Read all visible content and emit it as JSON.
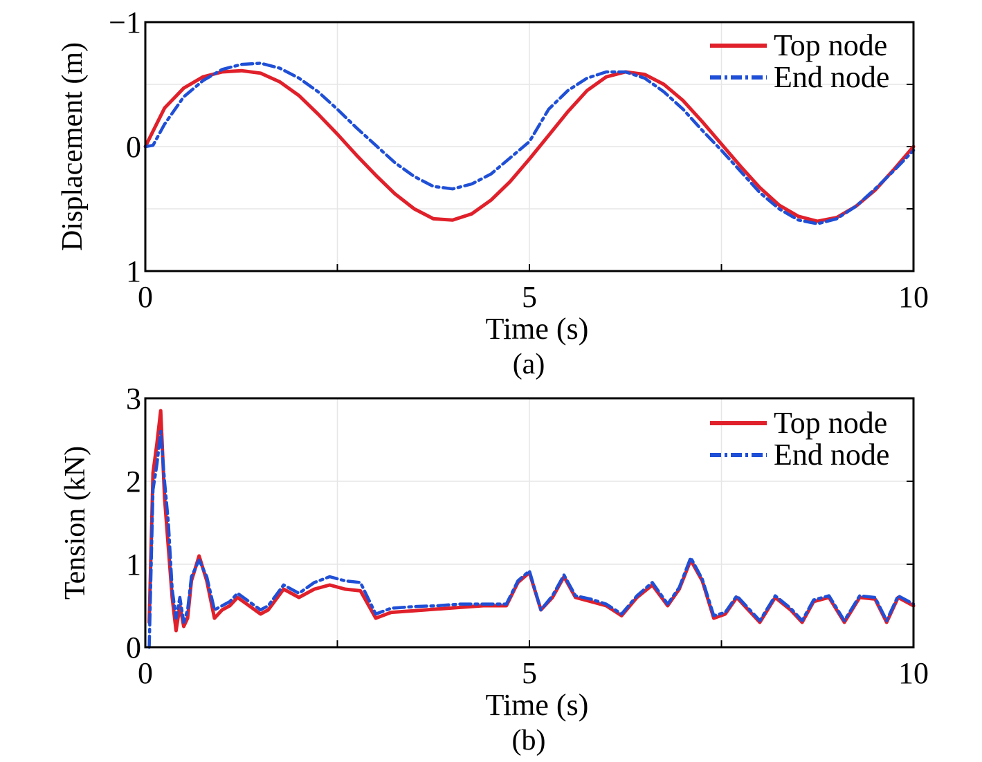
{
  "colors": {
    "top_node": "#e0202a",
    "end_node": "#1f4fd6",
    "grid": "#e6e6e6",
    "frame": "#000000"
  },
  "chart_data": [
    {
      "type": "line",
      "panel_label": "(a)",
      "xlabel": "Time (s)",
      "ylabel": "Displacement (m)",
      "xlim": [
        0,
        10
      ],
      "ylim": [
        -1,
        1
      ],
      "y_inverted": true,
      "xticks": [
        0,
        5,
        10
      ],
      "xtick_labels": [
        "0",
        "5",
        "10"
      ],
      "yticks": [
        -1,
        0,
        1
      ],
      "ytick_labels": [
        "−1",
        "0",
        "1"
      ],
      "minor_grid": {
        "x": [
          2.5,
          7.5
        ],
        "y": [
          -0.5,
          0.5
        ]
      },
      "legend": {
        "position": "top-right",
        "entries": [
          "Top node",
          "End node"
        ]
      },
      "series": [
        {
          "name": "Top node",
          "style": "solid",
          "x": [
            0,
            0.25,
            0.5,
            0.75,
            1.0,
            1.25,
            1.5,
            1.75,
            2.0,
            2.25,
            2.5,
            2.75,
            3.0,
            3.25,
            3.5,
            3.75,
            4.0,
            4.25,
            4.5,
            4.75,
            5.0,
            5.25,
            5.5,
            5.75,
            6.0,
            6.25,
            6.5,
            6.75,
            7.0,
            7.25,
            7.5,
            7.75,
            8.0,
            8.25,
            8.5,
            8.75,
            9.0,
            9.25,
            9.5,
            9.75,
            10.0
          ],
          "y": [
            0.0,
            -0.31,
            -0.47,
            -0.56,
            -0.6,
            -0.61,
            -0.59,
            -0.52,
            -0.41,
            -0.26,
            -0.1,
            0.07,
            0.23,
            0.38,
            0.5,
            0.58,
            0.59,
            0.54,
            0.43,
            0.28,
            0.1,
            -0.09,
            -0.28,
            -0.45,
            -0.56,
            -0.6,
            -0.58,
            -0.5,
            -0.37,
            -0.2,
            -0.02,
            0.16,
            0.33,
            0.47,
            0.56,
            0.6,
            0.57,
            0.48,
            0.35,
            0.18,
            0.0
          ]
        },
        {
          "name": "End node",
          "style": "dashdot",
          "x": [
            0,
            0.1,
            0.25,
            0.5,
            0.75,
            1.0,
            1.25,
            1.5,
            1.75,
            2.0,
            2.25,
            2.5,
            2.75,
            3.0,
            3.25,
            3.5,
            3.75,
            4.0,
            4.25,
            4.5,
            4.75,
            5.0,
            5.25,
            5.5,
            5.75,
            6.0,
            6.25,
            6.5,
            6.75,
            7.0,
            7.25,
            7.5,
            7.75,
            8.0,
            8.25,
            8.5,
            8.75,
            9.0,
            9.25,
            9.5,
            9.75,
            10.0
          ],
          "y": [
            0.0,
            -0.01,
            -0.18,
            -0.4,
            -0.53,
            -0.62,
            -0.66,
            -0.67,
            -0.63,
            -0.55,
            -0.44,
            -0.3,
            -0.15,
            -0.01,
            0.13,
            0.24,
            0.32,
            0.34,
            0.3,
            0.22,
            0.09,
            -0.04,
            -0.3,
            -0.45,
            -0.55,
            -0.6,
            -0.6,
            -0.55,
            -0.44,
            -0.3,
            -0.13,
            0.03,
            0.2,
            0.37,
            0.5,
            0.59,
            0.62,
            0.58,
            0.48,
            0.34,
            0.19,
            0.03
          ]
        }
      ]
    },
    {
      "type": "line",
      "panel_label": "(b)",
      "xlabel": "Time (s)",
      "ylabel": "Tension (kN)",
      "xlim": [
        0,
        10
      ],
      "ylim": [
        0,
        3
      ],
      "xticks": [
        0,
        5,
        10
      ],
      "xtick_labels": [
        "0",
        "5",
        "10"
      ],
      "yticks": [
        0,
        1,
        2,
        3
      ],
      "ytick_labels": [
        "0",
        "1",
        "2",
        "3"
      ],
      "minor_grid": {
        "x": [
          2.5,
          7.5
        ],
        "y": []
      },
      "legend": {
        "position": "top-right",
        "entries": [
          "Top node",
          "End node"
        ]
      },
      "series": [
        {
          "name": "Top node",
          "style": "solid",
          "x": [
            0.05,
            0.1,
            0.15,
            0.2,
            0.25,
            0.3,
            0.35,
            0.4,
            0.45,
            0.5,
            0.55,
            0.6,
            0.7,
            0.8,
            0.9,
            1.0,
            1.1,
            1.2,
            1.35,
            1.5,
            1.6,
            1.8,
            2.0,
            2.2,
            2.4,
            2.6,
            2.8,
            3.0,
            3.2,
            3.5,
            3.8,
            4.1,
            4.4,
            4.7,
            4.85,
            5.0,
            5.15,
            5.3,
            5.45,
            5.6,
            5.8,
            6.0,
            6.2,
            6.4,
            6.6,
            6.8,
            6.95,
            7.1,
            7.25,
            7.4,
            7.55,
            7.7,
            7.85,
            8.0,
            8.2,
            8.4,
            8.55,
            8.7,
            8.9,
            9.1,
            9.3,
            9.5,
            9.65,
            9.8,
            10.0
          ],
          "y": [
            0.3,
            2.1,
            2.45,
            2.85,
            1.8,
            1.2,
            0.6,
            0.2,
            0.5,
            0.25,
            0.35,
            0.8,
            1.1,
            0.8,
            0.35,
            0.45,
            0.5,
            0.6,
            0.5,
            0.4,
            0.45,
            0.7,
            0.6,
            0.7,
            0.75,
            0.7,
            0.68,
            0.35,
            0.42,
            0.44,
            0.46,
            0.48,
            0.5,
            0.5,
            0.78,
            0.9,
            0.45,
            0.6,
            0.85,
            0.6,
            0.55,
            0.5,
            0.38,
            0.6,
            0.75,
            0.5,
            0.7,
            1.05,
            0.8,
            0.35,
            0.4,
            0.6,
            0.45,
            0.3,
            0.6,
            0.45,
            0.3,
            0.55,
            0.6,
            0.3,
            0.6,
            0.58,
            0.3,
            0.6,
            0.5
          ]
        },
        {
          "name": "End node",
          "style": "dashdot",
          "x": [
            0.05,
            0.1,
            0.15,
            0.2,
            0.25,
            0.3,
            0.35,
            0.4,
            0.45,
            0.5,
            0.55,
            0.6,
            0.7,
            0.8,
            0.9,
            1.0,
            1.1,
            1.2,
            1.35,
            1.5,
            1.6,
            1.8,
            2.0,
            2.2,
            2.4,
            2.6,
            2.8,
            3.0,
            3.2,
            3.5,
            3.8,
            4.1,
            4.4,
            4.7,
            4.85,
            5.0,
            5.15,
            5.3,
            5.45,
            5.6,
            5.8,
            6.0,
            6.2,
            6.4,
            6.6,
            6.8,
            6.95,
            7.1,
            7.25,
            7.4,
            7.55,
            7.7,
            7.85,
            8.0,
            8.2,
            8.4,
            8.55,
            8.7,
            8.9,
            9.1,
            9.3,
            9.5,
            9.65,
            9.8,
            10.0
          ],
          "y": [
            0.0,
            1.9,
            2.2,
            2.6,
            2.0,
            1.5,
            0.7,
            0.35,
            0.6,
            0.3,
            0.45,
            0.85,
            1.05,
            0.85,
            0.45,
            0.5,
            0.55,
            0.65,
            0.55,
            0.45,
            0.5,
            0.75,
            0.65,
            0.78,
            0.85,
            0.8,
            0.78,
            0.4,
            0.47,
            0.49,
            0.5,
            0.52,
            0.52,
            0.52,
            0.8,
            0.92,
            0.45,
            0.62,
            0.87,
            0.62,
            0.58,
            0.52,
            0.4,
            0.62,
            0.78,
            0.52,
            0.72,
            1.08,
            0.82,
            0.38,
            0.42,
            0.62,
            0.47,
            0.32,
            0.62,
            0.47,
            0.32,
            0.57,
            0.62,
            0.32,
            0.62,
            0.6,
            0.32,
            0.62,
            0.52
          ]
        }
      ]
    }
  ]
}
